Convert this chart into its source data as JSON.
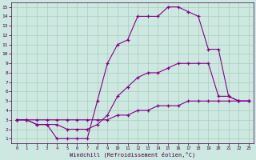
{
  "bg_color": "#cce8e0",
  "grid_color": "#aaccbb",
  "line_color": "#880088",
  "xlabel": "Windchill (Refroidissement éolien,°C)",
  "xlim": [
    -0.5,
    23.5
  ],
  "ylim": [
    0.5,
    15.5
  ],
  "xticks": [
    0,
    1,
    2,
    3,
    4,
    5,
    6,
    7,
    8,
    9,
    10,
    11,
    12,
    13,
    14,
    15,
    16,
    17,
    18,
    19,
    20,
    21,
    22,
    23
  ],
  "yticks": [
    1,
    2,
    3,
    4,
    5,
    6,
    7,
    8,
    9,
    10,
    11,
    12,
    13,
    14,
    15
  ],
  "curve1_x": [
    0,
    1,
    2,
    3,
    4,
    5,
    6,
    7,
    8,
    9,
    10,
    11,
    12,
    13,
    14,
    15,
    16,
    17,
    18,
    19,
    20,
    21,
    22,
    23
  ],
  "curve1_y": [
    3.0,
    3.0,
    2.5,
    2.5,
    1.0,
    1.0,
    1.0,
    1.0,
    5.0,
    9.0,
    11.0,
    11.5,
    14.0,
    14.0,
    14.0,
    15.0,
    15.0,
    14.5,
    14.0,
    10.5,
    10.5,
    5.5,
    5.0,
    5.0
  ],
  "curve2_x": [
    0,
    1,
    2,
    3,
    4,
    5,
    6,
    7,
    8,
    9,
    10,
    11,
    12,
    13,
    14,
    15,
    16,
    17,
    18,
    19,
    20,
    21,
    22,
    23
  ],
  "curve2_y": [
    3.0,
    3.0,
    2.5,
    2.5,
    2.5,
    2.0,
    2.0,
    2.0,
    2.5,
    3.5,
    5.5,
    6.5,
    7.5,
    8.0,
    8.0,
    8.5,
    9.0,
    9.0,
    9.0,
    9.0,
    5.5,
    5.5,
    5.0,
    5.0
  ],
  "curve3_x": [
    0,
    1,
    2,
    3,
    4,
    5,
    6,
    7,
    8,
    9,
    10,
    11,
    12,
    13,
    14,
    15,
    16,
    17,
    18,
    19,
    20,
    21,
    22,
    23
  ],
  "curve3_y": [
    3.0,
    3.0,
    3.0,
    3.0,
    3.0,
    3.0,
    3.0,
    3.0,
    3.0,
    3.0,
    3.5,
    3.5,
    4.0,
    4.0,
    4.5,
    4.5,
    4.5,
    5.0,
    5.0,
    5.0,
    5.0,
    5.0,
    5.0,
    5.0
  ]
}
